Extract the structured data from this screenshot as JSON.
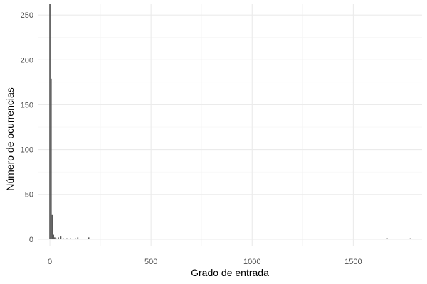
{
  "chart_data": {
    "type": "bar",
    "title": "",
    "xlabel": "Grado de entrada",
    "ylabel": "Número de ocurrencias",
    "xlim": [
      -60,
      1840
    ],
    "ylim": [
      -8,
      262
    ],
    "x_ticks": [
      0,
      500,
      1000,
      1500
    ],
    "x_tick_labels": [
      "0",
      "500",
      "1000",
      "1500"
    ],
    "y_ticks": [
      0,
      50,
      100,
      150,
      200,
      250
    ],
    "y_tick_labels": [
      "0",
      "50",
      "100",
      "150",
      "200",
      "250"
    ],
    "grid": true,
    "bin_width": 6,
    "bar_color": "#595959",
    "grid_major_color": "#ebebeb",
    "grid_minor_color": "#f4f4f4",
    "bars": [
      {
        "x": 0,
        "y": 262
      },
      {
        "x": 6,
        "y": 179
      },
      {
        "x": 12,
        "y": 27
      },
      {
        "x": 18,
        "y": 5
      },
      {
        "x": 24,
        "y": 2
      },
      {
        "x": 30,
        "y": 1
      },
      {
        "x": 42,
        "y": 2
      },
      {
        "x": 54,
        "y": 3
      },
      {
        "x": 66,
        "y": 1
      },
      {
        "x": 84,
        "y": 1
      },
      {
        "x": 102,
        "y": 1
      },
      {
        "x": 126,
        "y": 1
      },
      {
        "x": 138,
        "y": 2
      },
      {
        "x": 192,
        "y": 2
      },
      {
        "x": 1668,
        "y": 1
      },
      {
        "x": 1782,
        "y": 1
      }
    ]
  }
}
